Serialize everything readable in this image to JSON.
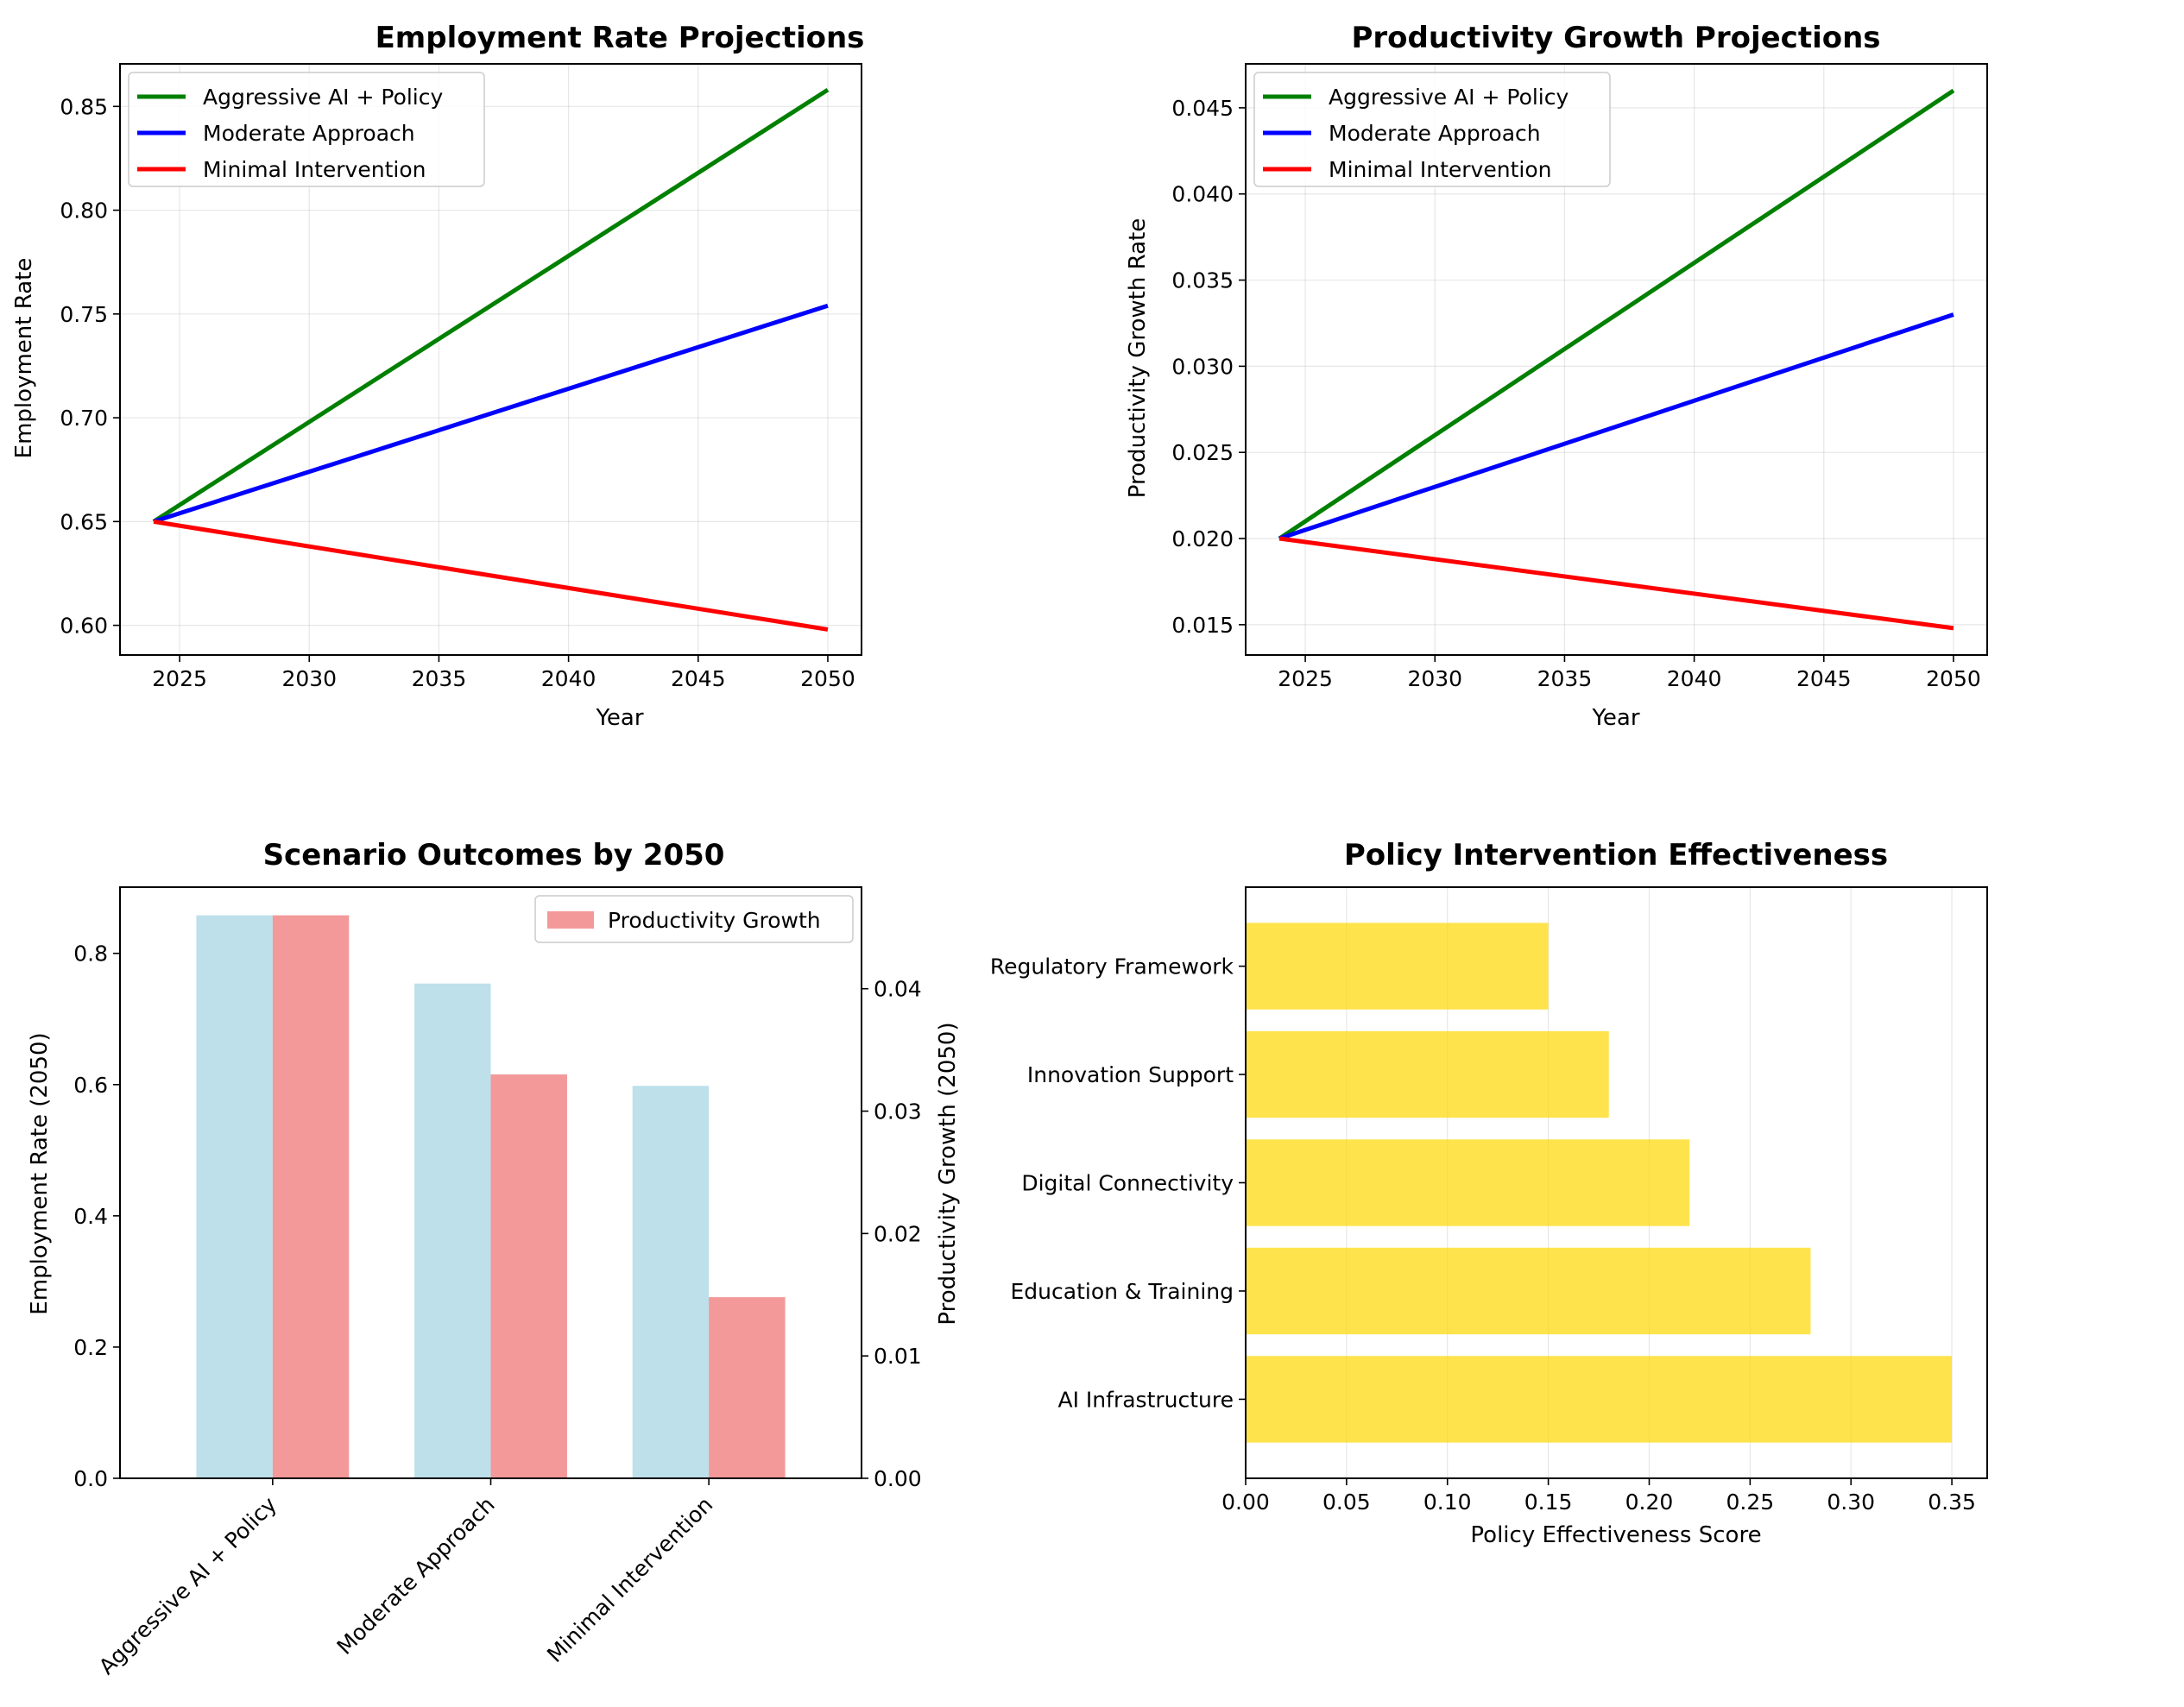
{
  "figure": {
    "background": "#ffffff"
  },
  "chart_data": [
    {
      "id": "employment",
      "type": "line",
      "title": "Employment Rate Projections",
      "xlabel": "Year",
      "ylabel": "Employment Rate",
      "xlim": [
        2022.7,
        2051.3
      ],
      "ylim": [
        0.5857,
        0.8705
      ],
      "xticks": [
        2025,
        2030,
        2035,
        2040,
        2045,
        2050
      ],
      "yticks": [
        0.6,
        0.65,
        0.7,
        0.75,
        0.8,
        0.85
      ],
      "ytick_labels": [
        "0.60",
        "0.65",
        "0.70",
        "0.75",
        "0.80",
        "0.85"
      ],
      "grid": true,
      "legend": "top-left",
      "series": [
        {
          "name": "Aggressive AI + Policy",
          "color": "#008000",
          "x": [
            2024,
            2050
          ],
          "y": [
            0.65,
            0.858
          ]
        },
        {
          "name": "Moderate Approach",
          "color": "#0000ff",
          "x": [
            2024,
            2050
          ],
          "y": [
            0.65,
            0.754
          ]
        },
        {
          "name": "Minimal Intervention",
          "color": "#ff0000",
          "x": [
            2024,
            2050
          ],
          "y": [
            0.65,
            0.598
          ]
        }
      ]
    },
    {
      "id": "productivity",
      "type": "line",
      "title": "Productivity Growth Projections",
      "xlabel": "Year",
      "ylabel": "Productivity Growth Rate",
      "xlim": [
        2022.7,
        2051.3
      ],
      "ylim": [
        0.01324,
        0.04755
      ],
      "xticks": [
        2025,
        2030,
        2035,
        2040,
        2045,
        2050
      ],
      "yticks": [
        0.015,
        0.02,
        0.025,
        0.03,
        0.035,
        0.04,
        0.045
      ],
      "ytick_labels": [
        "0.015",
        "0.020",
        "0.025",
        "0.030",
        "0.035",
        "0.040",
        "0.045"
      ],
      "grid": true,
      "legend": "top-left",
      "series": [
        {
          "name": "Aggressive AI + Policy",
          "color": "#008000",
          "x": [
            2024,
            2050
          ],
          "y": [
            0.02,
            0.046
          ]
        },
        {
          "name": "Moderate Approach",
          "color": "#0000ff",
          "x": [
            2024,
            2050
          ],
          "y": [
            0.02,
            0.033
          ]
        },
        {
          "name": "Minimal Intervention",
          "color": "#ff0000",
          "x": [
            2024,
            2050
          ],
          "y": [
            0.02,
            0.0148
          ]
        }
      ]
    },
    {
      "id": "outcomes",
      "type": "bar",
      "title": "Scenario Outcomes by 2050",
      "categories": [
        "Aggressive AI + Policy",
        "Moderate Approach",
        "Minimal Intervention"
      ],
      "ylabel": "Employment Rate (2050)",
      "ylabel_right": "Productivity Growth (2050)",
      "ylim": [
        0,
        0.9009
      ],
      "ylim_right": [
        0,
        0.0483
      ],
      "yticks": [
        0.0,
        0.2,
        0.4,
        0.6,
        0.8
      ],
      "ytick_labels": [
        "0.0",
        "0.2",
        "0.4",
        "0.6",
        "0.8"
      ],
      "yticks_right": [
        0.0,
        0.01,
        0.02,
        0.03,
        0.04
      ],
      "ytick_labels_right": [
        "0.00",
        "0.01",
        "0.02",
        "0.03",
        "0.04"
      ],
      "legend": "top-right",
      "series": [
        {
          "name": "Employment Rate",
          "color": "#add8e6",
          "alpha": 0.8,
          "axis": "left",
          "values": [
            0.858,
            0.754,
            0.598
          ]
        },
        {
          "name": "Productivity Growth",
          "color": "#f08080",
          "alpha": 0.8,
          "axis": "right",
          "values": [
            0.046,
            0.033,
            0.0148
          ]
        }
      ],
      "legend_entries": [
        "Productivity Growth"
      ]
    },
    {
      "id": "policy",
      "type": "barh",
      "title": "Policy Intervention Effectiveness",
      "xlabel": "Policy Effectiveness Score",
      "categories": [
        "AI Infrastructure",
        "Education & Training",
        "Digital Connectivity",
        "Innovation Support",
        "Regulatory Framework"
      ],
      "values": [
        0.35,
        0.28,
        0.22,
        0.18,
        0.15
      ],
      "color": "#ffd700",
      "alpha": 0.7,
      "xlim": [
        0,
        0.3675
      ],
      "xticks": [
        0.0,
        0.05,
        0.1,
        0.15,
        0.2,
        0.25,
        0.3,
        0.35
      ],
      "xtick_labels": [
        "0.00",
        "0.05",
        "0.10",
        "0.15",
        "0.20",
        "0.25",
        "0.30",
        "0.35"
      ],
      "grid": true
    }
  ]
}
